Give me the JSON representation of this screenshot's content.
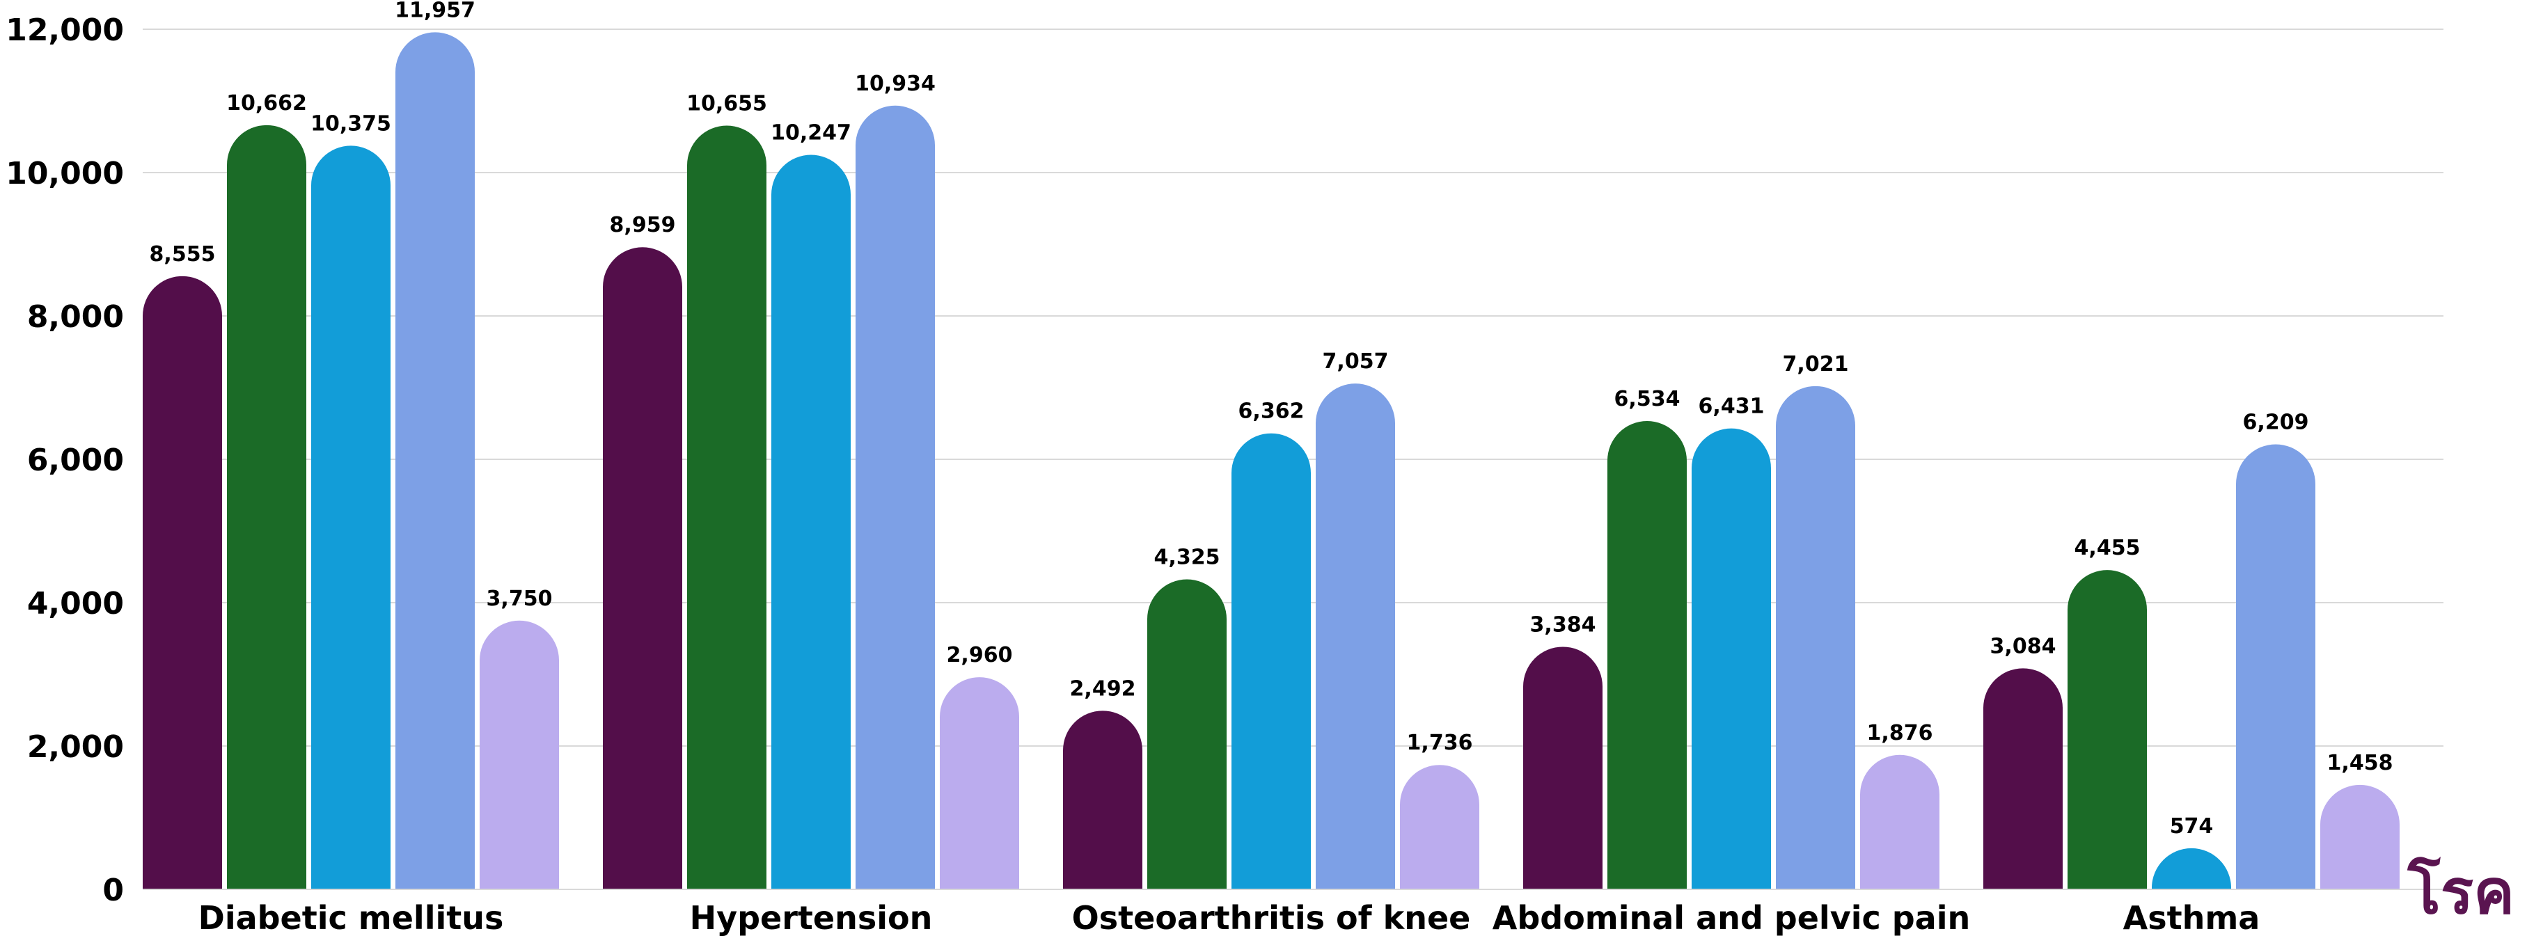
{
  "chart_data": {
    "type": "bar",
    "categories": [
      "Diabetic mellitus",
      "Hypertension",
      "Osteoarthritis of knee",
      "Abdominal and pelvic pain",
      "Asthma"
    ],
    "series": [
      {
        "values": [
          8555,
          8959,
          2492,
          3384,
          3084
        ],
        "color": "#530e4a"
      },
      {
        "values": [
          10662,
          10655,
          4325,
          6534,
          4455
        ],
        "color": "#1b6b27"
      },
      {
        "values": [
          10375,
          10247,
          6362,
          6431,
          574
        ],
        "color": "#129dd8"
      },
      {
        "values": [
          11957,
          10934,
          7057,
          7021,
          6209
        ],
        "color": "#7da0e6"
      },
      {
        "values": [
          3750,
          2960,
          1736,
          1876,
          1458
        ],
        "color": "#bbacee"
      }
    ],
    "data_labels": [
      [
        "8,555",
        "8,959",
        "2,492",
        "3,384",
        "3,084"
      ],
      [
        "10,662",
        "10,655",
        "4,325",
        "6,534",
        "4,455"
      ],
      [
        "10,375",
        "10,247",
        "6,362",
        "6,431",
        "574"
      ],
      [
        "11,957",
        "10,934",
        "7,057",
        "7,021",
        "6,209"
      ],
      [
        "3,750",
        "2,960",
        "1,736",
        "1,876",
        "1,458"
      ]
    ],
    "y_ticks": [
      0,
      2000,
      4000,
      6000,
      8000,
      10000,
      12000
    ],
    "y_tick_labels": [
      "0",
      "2,000",
      "4,000",
      "6,000",
      "8,000",
      "10,000",
      "12,000"
    ],
    "ylim": [
      0,
      12000
    ],
    "grid": true,
    "legend": "none"
  },
  "logo": {
    "text": "โรค",
    "color": "#5a1450"
  }
}
